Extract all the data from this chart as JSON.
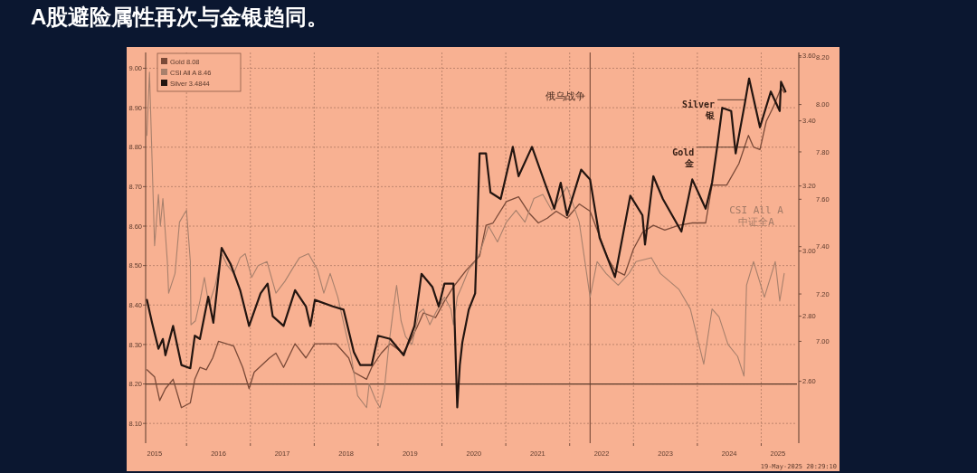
{
  "chart_data": {
    "type": "line",
    "title": "A股避险属性再次与金银趋同。",
    "xlim": [
      2015.36,
      2025.56
    ],
    "xticks": [
      {
        "value": 2015.5,
        "label": "2015"
      },
      {
        "value": 2016,
        "label": null
      },
      {
        "value": 2016.5,
        "label": "2016"
      },
      {
        "value": 2017,
        "label": null
      },
      {
        "value": 2017.5,
        "label": "2017"
      },
      {
        "value": 2018,
        "label": null
      },
      {
        "value": 2018.5,
        "label": "2018"
      },
      {
        "value": 2019,
        "label": null
      },
      {
        "value": 2019.5,
        "label": "2019"
      },
      {
        "value": 2020,
        "label": null
      },
      {
        "value": 2020.5,
        "label": "2020"
      },
      {
        "value": 2021,
        "label": null
      },
      {
        "value": 2021.5,
        "label": "2021"
      },
      {
        "value": 2022,
        "label": null
      },
      {
        "value": 2022.5,
        "label": "2022"
      },
      {
        "value": 2023,
        "label": null
      },
      {
        "value": 2023.5,
        "label": "2023"
      },
      {
        "value": 2024,
        "label": null
      },
      {
        "value": 2024.5,
        "label": "2024"
      },
      {
        "value": 2025,
        "label": null
      },
      {
        "value": 2025.26,
        "label": "2025"
      }
    ],
    "ylim": [
      8.05,
      9.04
    ],
    "yticks": [
      {
        "value": 8.1,
        "label": "8.10"
      },
      {
        "value": 8.2,
        "label": "8.20"
      },
      {
        "value": 8.3,
        "label": "8.30"
      },
      {
        "value": 8.4,
        "label": "8.40"
      },
      {
        "value": 8.5,
        "label": "8.50"
      },
      {
        "value": 8.6,
        "label": "8.60"
      },
      {
        "value": 8.7,
        "label": "8.70"
      },
      {
        "value": 8.8,
        "label": "8.80"
      },
      {
        "value": 8.9,
        "label": "8.90"
      },
      {
        "value": 9.0,
        "label": "9.00"
      }
    ],
    "y2lim": [
      2.41,
      3.61
    ],
    "y2ticks": [
      {
        "value": 2.6,
        "label": "2.60"
      },
      {
        "value": 2.8,
        "label": "2.80"
      },
      {
        "value": 3.0,
        "label": "3.00"
      },
      {
        "value": 3.2,
        "label": "3.20"
      },
      {
        "value": 3.4,
        "label": "3.40"
      },
      {
        "value": 3.6,
        "label": "3.60"
      }
    ],
    "y3lim": [
      6.57,
      8.22
    ],
    "y3ticks": [
      {
        "value": 7.0,
        "label": "7.00"
      },
      {
        "value": 7.2,
        "label": "7.20"
      },
      {
        "value": 7.4,
        "label": "7.40"
      },
      {
        "value": 7.6,
        "label": "7.60"
      },
      {
        "value": 7.8,
        "label": "7.80"
      },
      {
        "value": 8.0,
        "label": "8.00"
      },
      {
        "value": 8.2,
        "label": "8.20"
      }
    ],
    "grid": true,
    "legend": "top left",
    "ref_lines": [
      {
        "axis": "x",
        "value": 2022.32,
        "label": "俄乌战争",
        "color": "#6b3f2e"
      },
      {
        "axis": "y",
        "value": 8.2,
        "label": null,
        "color": "#5a3a2a"
      }
    ],
    "annotations": [
      {
        "text": "Silver\n银",
        "x": 2024.74,
        "y": 8.92
      },
      {
        "text": "Gold\n金",
        "x": 2024.8,
        "y": 8.8
      },
      "CSI All A\n中证全A",
      "19-May-2025 20:29:10"
    ],
    "series": [
      {
        "name": "Gold 8.08",
        "color": "#7a4a38",
        "axis": "y3",
        "x": [
          2015.38,
          2015.5,
          2015.58,
          2015.67,
          2015.79,
          2015.92,
          2016.06,
          2016.13,
          2016.21,
          2016.31,
          2016.41,
          2016.5,
          2016.74,
          2016.88,
          2016.98,
          2017.06,
          2017.3,
          2017.4,
          2017.52,
          2017.7,
          2017.87,
          2018.01,
          2018.34,
          2018.54,
          2018.62,
          2018.82,
          2018.9,
          2019.05,
          2019.19,
          2019.39,
          2019.5,
          2019.61,
          2019.71,
          2019.9,
          2020.04,
          2020.18,
          2020.38,
          2020.59,
          2020.69,
          2020.8,
          2021.01,
          2021.2,
          2021.37,
          2021.51,
          2021.65,
          2021.79,
          2021.96,
          2022.15,
          2022.32,
          2022.46,
          2022.6,
          2022.71,
          2022.86,
          2023.0,
          2023.14,
          2023.31,
          2023.49,
          2023.71,
          2023.92,
          2024.13,
          2024.23,
          2024.46,
          2024.65,
          2024.8,
          2024.88,
          2024.98,
          2025.08,
          2025.19,
          2025.31,
          2025.36
        ],
        "values": [
          6.88,
          6.85,
          6.75,
          6.8,
          6.84,
          6.72,
          6.74,
          6.84,
          6.89,
          6.88,
          6.93,
          7.0,
          6.98,
          6.89,
          6.8,
          6.87,
          6.93,
          6.95,
          6.89,
          6.99,
          6.93,
          6.99,
          6.99,
          6.93,
          6.87,
          6.84,
          6.89,
          6.95,
          6.99,
          6.95,
          7.0,
          7.06,
          7.12,
          7.1,
          7.17,
          7.23,
          7.3,
          7.36,
          7.49,
          7.5,
          7.59,
          7.61,
          7.54,
          7.5,
          7.52,
          7.55,
          7.52,
          7.58,
          7.55,
          7.45,
          7.35,
          7.3,
          7.28,
          7.39,
          7.46,
          7.49,
          7.47,
          7.49,
          7.5,
          7.5,
          7.66,
          7.66,
          7.75,
          7.87,
          7.82,
          7.81,
          7.93,
          7.99,
          8.07,
          8.05
        ]
      },
      {
        "name": "CSI All A 8.46",
        "color": "#a8806c",
        "axis": "y",
        "x": [
          2015.38,
          2015.42,
          2015.5,
          2015.56,
          2015.59,
          2015.63,
          2015.7,
          2015.72,
          2015.82,
          2015.89,
          2015.96,
          2016.0,
          2016.06,
          2016.07,
          2016.14,
          2016.21,
          2016.28,
          2016.35,
          2016.45,
          2016.55,
          2016.64,
          2016.74,
          2016.84,
          2016.92,
          2017.02,
          2017.12,
          2017.26,
          2017.4,
          2017.54,
          2017.69,
          2017.77,
          2017.91,
          2017.98,
          2018.05,
          2018.15,
          2018.25,
          2018.37,
          2018.48,
          2018.58,
          2018.68,
          2018.82,
          2018.86,
          2018.96,
          2019.03,
          2019.1,
          2019.17,
          2019.24,
          2019.29,
          2019.36,
          2019.43,
          2019.53,
          2019.64,
          2019.71,
          2019.81,
          2019.9,
          2020.04,
          2020.14,
          2020.18,
          2020.24,
          2020.32,
          2020.42,
          2020.52,
          2020.59,
          2020.73,
          2020.87,
          2021.01,
          2021.16,
          2021.3,
          2021.44,
          2021.58,
          2021.72,
          2021.96,
          2022.15,
          2022.32,
          2022.43,
          2022.57,
          2022.76,
          2022.93,
          2023.04,
          2023.28,
          2023.42,
          2023.71,
          2023.89,
          2024.1,
          2024.23,
          2024.34,
          2024.48,
          2024.63,
          2024.73,
          2024.77,
          2024.88,
          2025.05,
          2025.22,
          2025.29,
          2025.36
        ],
        "values": [
          8.83,
          8.99,
          8.55,
          8.68,
          8.6,
          8.67,
          8.51,
          8.43,
          8.48,
          8.61,
          8.63,
          8.64,
          8.51,
          8.35,
          8.36,
          8.41,
          8.47,
          8.4,
          8.45,
          8.53,
          8.5,
          8.48,
          8.52,
          8.53,
          8.47,
          8.5,
          8.51,
          8.43,
          8.46,
          8.5,
          8.52,
          8.53,
          8.51,
          8.49,
          8.43,
          8.48,
          8.42,
          8.34,
          8.27,
          8.17,
          8.14,
          8.2,
          8.16,
          8.14,
          8.19,
          8.3,
          8.39,
          8.45,
          8.36,
          8.32,
          8.3,
          8.38,
          8.39,
          8.35,
          8.38,
          8.42,
          8.39,
          8.35,
          8.42,
          8.45,
          8.49,
          8.51,
          8.53,
          8.6,
          8.56,
          8.61,
          8.64,
          8.61,
          8.67,
          8.68,
          8.64,
          8.7,
          8.61,
          8.42,
          8.51,
          8.48,
          8.45,
          8.48,
          8.51,
          8.52,
          8.48,
          8.44,
          8.39,
          8.25,
          8.39,
          8.37,
          8.3,
          8.27,
          8.22,
          8.45,
          8.51,
          8.42,
          8.51,
          8.41,
          8.48
        ]
      },
      {
        "name": "Silver 3.4844",
        "color": "#231510",
        "axis": "y2",
        "x": [
          2015.38,
          2015.46,
          2015.56,
          2015.63,
          2015.67,
          2015.79,
          2015.92,
          2016.06,
          2016.13,
          2016.21,
          2016.34,
          2016.42,
          2016.55,
          2016.69,
          2016.84,
          2016.98,
          2017.16,
          2017.27,
          2017.35,
          2017.52,
          2017.7,
          2017.87,
          2017.94,
          2018.01,
          2018.29,
          2018.46,
          2018.62,
          2018.72,
          2018.9,
          2019.0,
          2019.19,
          2019.4,
          2019.57,
          2019.68,
          2019.85,
          2019.95,
          2020.04,
          2020.18,
          2020.24,
          2020.28,
          2020.32,
          2020.42,
          2020.52,
          2020.59,
          2020.69,
          2020.76,
          2020.92,
          2021.11,
          2021.2,
          2021.41,
          2021.61,
          2021.76,
          2021.86,
          2021.96,
          2022.18,
          2022.32,
          2022.47,
          2022.61,
          2022.71,
          2022.95,
          2023.14,
          2023.18,
          2023.31,
          2023.46,
          2023.75,
          2023.92,
          2024.13,
          2024.23,
          2024.31,
          2024.39,
          2024.53,
          2024.6,
          2024.74,
          2024.81,
          2024.98,
          2025.15,
          2025.29,
          2025.31,
          2025.38
        ],
        "values": [
          2.85,
          2.78,
          2.7,
          2.73,
          2.68,
          2.77,
          2.65,
          2.64,
          2.74,
          2.73,
          2.86,
          2.78,
          3.01,
          2.96,
          2.88,
          2.77,
          2.87,
          2.9,
          2.8,
          2.77,
          2.88,
          2.83,
          2.77,
          2.85,
          2.83,
          2.82,
          2.69,
          2.65,
          2.65,
          2.74,
          2.73,
          2.68,
          2.77,
          2.93,
          2.89,
          2.83,
          2.9,
          2.9,
          2.52,
          2.65,
          2.72,
          2.82,
          2.87,
          3.3,
          3.3,
          3.18,
          3.16,
          3.32,
          3.23,
          3.32,
          3.21,
          3.13,
          3.21,
          3.11,
          3.25,
          3.22,
          3.04,
          2.97,
          2.92,
          3.17,
          3.11,
          3.02,
          3.23,
          3.16,
          3.06,
          3.22,
          3.13,
          3.21,
          3.32,
          3.44,
          3.43,
          3.3,
          3.45,
          3.53,
          3.38,
          3.49,
          3.43,
          3.52,
          3.49
        ]
      }
    ]
  }
}
